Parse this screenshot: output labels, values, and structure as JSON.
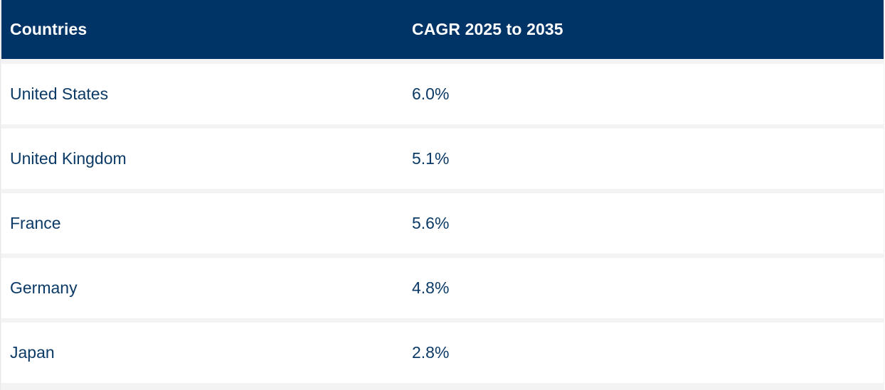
{
  "chart_data": {
    "type": "table",
    "columns": [
      "Countries",
      "CAGR 2025 to 2035"
    ],
    "rows": [
      {
        "country": "United States",
        "cagr": "6.0%"
      },
      {
        "country": "United Kingdom",
        "cagr": "5.1%"
      },
      {
        "country": "France",
        "cagr": "5.6%"
      },
      {
        "country": "Germany",
        "cagr": "4.8%"
      },
      {
        "country": "Japan",
        "cagr": "2.8%"
      }
    ]
  },
  "colors": {
    "header_bg": "#003366",
    "header_text": "#ffffff",
    "row_bg": "#ffffff",
    "row_text": "#0b3a66",
    "separator": "#f3f3f3"
  }
}
